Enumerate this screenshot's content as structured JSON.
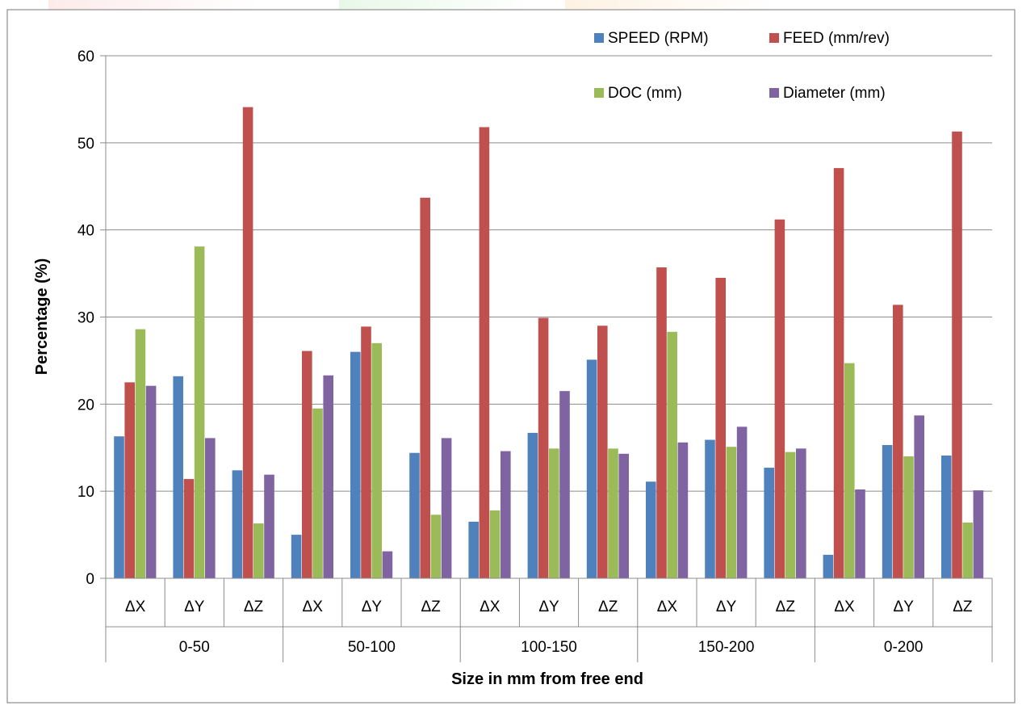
{
  "chart_data": {
    "type": "bar",
    "title": "",
    "xlabel": "Size in mm from free end",
    "ylabel": "Percentage (%)",
    "ylim": [
      0,
      60
    ],
    "yticks": [
      0,
      10,
      20,
      30,
      40,
      50,
      60
    ],
    "grid": true,
    "legend_position": "top-right",
    "groups": [
      {
        "label": "0-50",
        "categories": [
          "ΔX",
          "ΔY",
          "ΔZ"
        ]
      },
      {
        "label": "50-100",
        "categories": [
          "ΔX",
          "ΔY",
          "ΔZ"
        ]
      },
      {
        "label": "100-150",
        "categories": [
          "ΔX",
          "ΔY",
          "ΔZ"
        ]
      },
      {
        "label": "150-200",
        "categories": [
          "ΔX",
          "ΔY",
          "ΔZ"
        ]
      },
      {
        "label": "0-200",
        "categories": [
          "ΔX",
          "ΔY",
          "ΔZ"
        ]
      }
    ],
    "series": [
      {
        "name": "SPEED (RPM)",
        "color": "#4f81bd",
        "values": [
          16.3,
          23.2,
          12.4,
          5.0,
          26.0,
          14.4,
          6.5,
          16.7,
          25.1,
          11.1,
          15.9,
          12.7,
          2.7,
          15.3,
          14.1
        ]
      },
      {
        "name": "FEED (mm/rev)",
        "color": "#c0504d",
        "values": [
          22.5,
          11.4,
          54.1,
          26.1,
          28.9,
          43.7,
          51.8,
          29.9,
          29.0,
          35.7,
          34.5,
          41.2,
          47.1,
          31.4,
          51.3
        ]
      },
      {
        "name": "DOC (mm)",
        "color": "#9bbb59",
        "values": [
          28.6,
          38.1,
          6.3,
          19.5,
          27.0,
          7.3,
          7.8,
          14.9,
          14.9,
          28.3,
          15.1,
          14.5,
          24.7,
          14.0,
          6.4
        ]
      },
      {
        "name": "Diameter (mm)",
        "color": "#8064a2",
        "values": [
          22.1,
          16.1,
          11.9,
          23.3,
          3.1,
          16.1,
          14.6,
          21.5,
          14.3,
          15.6,
          17.4,
          14.9,
          10.2,
          18.7,
          10.1
        ]
      }
    ]
  }
}
